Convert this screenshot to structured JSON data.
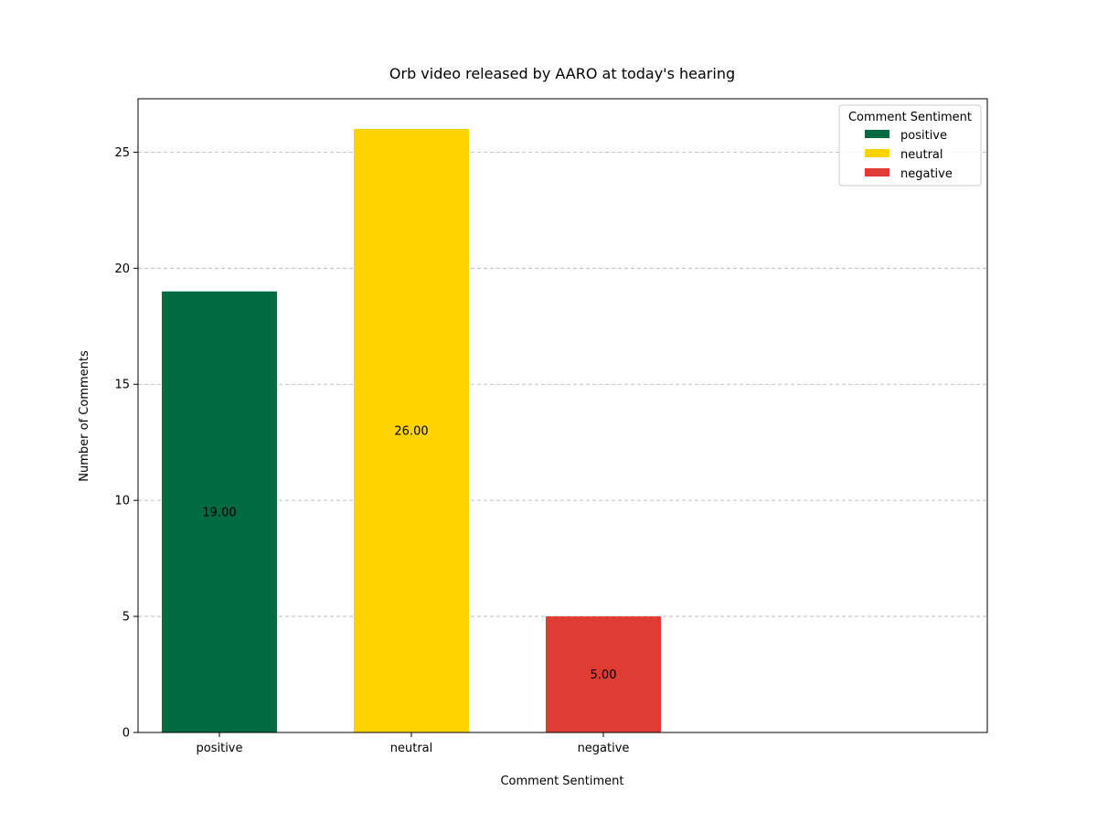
{
  "chart_data": {
    "type": "bar",
    "title": "Orb video released by AARO at today's hearing",
    "xlabel": "Comment Sentiment",
    "ylabel": "Number of Comments",
    "categories": [
      "positive",
      "neutral",
      "negative"
    ],
    "values": [
      19,
      26,
      5
    ],
    "value_labels": [
      "19.00",
      "26.00",
      "5.00"
    ],
    "colors": [
      "#026a40",
      "#fed300",
      "#e03c33"
    ],
    "ylim": [
      0,
      27.3
    ],
    "yticks": [
      0,
      5,
      10,
      15,
      20,
      25
    ],
    "grid": "horizontal dashed",
    "legend": {
      "title": "Comment Sentiment",
      "placement": "top-right",
      "entries": [
        "positive",
        "neutral",
        "negative"
      ]
    }
  }
}
